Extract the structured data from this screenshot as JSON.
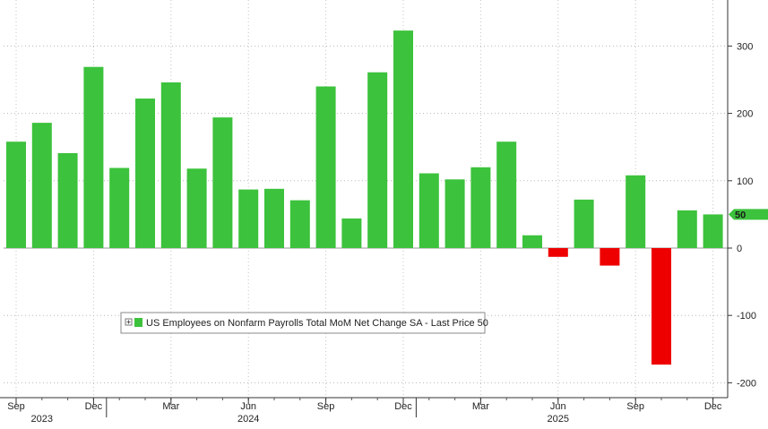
{
  "chart_data": {
    "type": "bar",
    "title": "",
    "xlabel": "",
    "ylabel": "",
    "ylim": [
      -210,
      365
    ],
    "y_ticks": [
      -200,
      -100,
      0,
      100,
      200,
      300
    ],
    "grid": "dotted",
    "y_axis_side": "right",
    "categories": [
      "2023-09",
      "2023-10",
      "2023-11",
      "2023-12",
      "2024-01",
      "2024-02",
      "2024-03",
      "2024-04",
      "2024-05",
      "2024-06",
      "2024-07",
      "2024-08",
      "2024-09",
      "2024-10",
      "2024-11",
      "2024-12",
      "2025-01",
      "2025-02",
      "2025-03",
      "2025-04",
      "2025-05",
      "2025-06",
      "2025-07",
      "2025-08",
      "2025-09",
      "2025-10",
      "2025-11",
      "2025-12"
    ],
    "series": [
      {
        "name": "US Employees on Nonfarm Payrolls Total MoM Net Change SA - Last Price 50",
        "positive_color": "#3cc23c",
        "negative_color": "#ee0000",
        "values": [
          158,
          186,
          141,
          269,
          119,
          222,
          246,
          118,
          194,
          87,
          88,
          71,
          240,
          44,
          261,
          323,
          111,
          102,
          120,
          158,
          19,
          -13,
          72,
          -26,
          108,
          -173,
          56,
          50
        ]
      }
    ],
    "x_tick_labels": [
      {
        "label": "Sep",
        "index": 0
      },
      {
        "label": "Dec",
        "index": 3
      },
      {
        "label": "Mar",
        "index": 6
      },
      {
        "label": "Jun",
        "index": 9
      },
      {
        "label": "Sep",
        "index": 12
      },
      {
        "label": "Dec",
        "index": 15
      },
      {
        "label": "Mar",
        "index": 18
      },
      {
        "label": "Jun",
        "index": 21
      },
      {
        "label": "Sep",
        "index": 24
      },
      {
        "label": "Dec",
        "index": 27
      }
    ],
    "year_labels": [
      {
        "label": "2023",
        "index": 1
      },
      {
        "label": "2024",
        "index": 9
      },
      {
        "label": "2025",
        "index": 21
      }
    ],
    "legend": {
      "position": "bottom-left",
      "text": "US Employees on Nonfarm Payrolls Total MoM Net Change SA - Last Price 50"
    },
    "last_price": {
      "label": "50",
      "value": 50,
      "color": "#3cc23c"
    }
  }
}
